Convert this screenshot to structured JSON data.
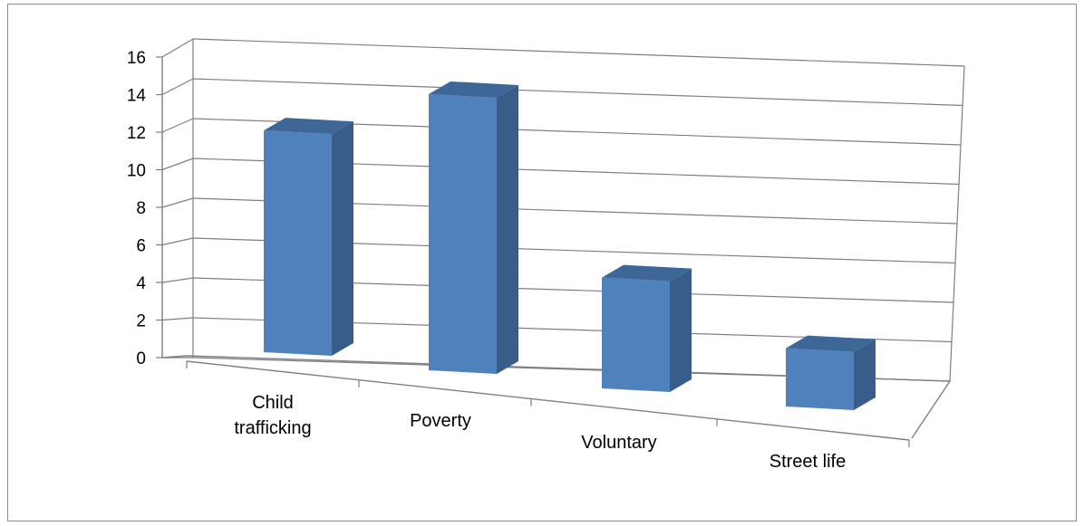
{
  "chart_data": {
    "type": "bar",
    "style": "3d-column",
    "categories": [
      "Child trafficking",
      "Poverty",
      "Voluntary",
      "Street life"
    ],
    "category_lines": [
      [
        "Child",
        "trafficking"
      ],
      [
        "Poverty"
      ],
      [
        "Voluntary"
      ],
      [
        "Street life"
      ]
    ],
    "values": [
      11.8,
      14.7,
      5.9,
      3.1
    ],
    "ylim": [
      0,
      16
    ],
    "yticks": [
      "0",
      "2",
      "4",
      "6",
      "8",
      "10",
      "12",
      "14",
      "16"
    ],
    "title": "",
    "xlabel": "",
    "ylabel": "",
    "grid": true,
    "legend": "none",
    "colors": {
      "front": "#4f81bd",
      "side": "#385d8a",
      "top": "#3d6797",
      "grid": "#7f7f7f"
    }
  }
}
